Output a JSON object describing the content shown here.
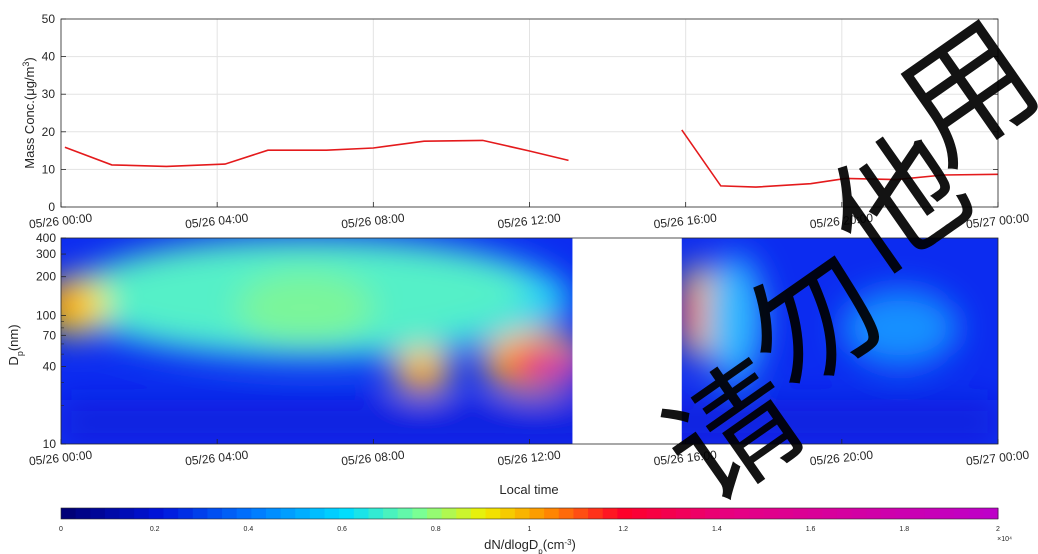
{
  "chart_data": [
    {
      "type": "line",
      "ylabel": "Mass Conc.(μg/m3)",
      "ylim": [
        0,
        50
      ],
      "yticks": [
        "0",
        "10",
        "20",
        "30",
        "40",
        "50"
      ],
      "xticks": [
        "05/26 00:00",
        "05/26 04:00",
        "05/26 08:00",
        "05/26 12:00",
        "05/26 16:00",
        "05/26 20:00",
        "05/27 00:00"
      ],
      "grid": true,
      "color": "#e41a1c",
      "segments": [
        [
          [
            0.1,
            15.9
          ],
          [
            1.3,
            11.2
          ],
          [
            2.7,
            10.8
          ],
          [
            4.2,
            11.4
          ],
          [
            5.3,
            15.1
          ],
          [
            6.8,
            15.1
          ],
          [
            8.0,
            15.7
          ],
          [
            9.3,
            17.5
          ],
          [
            10.8,
            17.7
          ],
          [
            12.0,
            14.9
          ],
          [
            13.0,
            12.4
          ]
        ],
        [
          [
            15.9,
            20.5
          ],
          [
            16.9,
            5.6
          ],
          [
            17.8,
            5.3
          ],
          [
            19.2,
            6.2
          ],
          [
            20.1,
            7.6
          ],
          [
            21.4,
            7.3
          ],
          [
            22.6,
            8.5
          ],
          [
            24.0,
            8.7
          ]
        ]
      ]
    },
    {
      "type": "heatmap",
      "ylabel": "Dp(nm)",
      "xlabel": "Local time",
      "yticks": [
        "10",
        "40",
        "70",
        "100",
        "200",
        "300",
        "400"
      ],
      "xticks": [
        "05/26 00:00",
        "05/26 04:00",
        "05/26 08:00",
        "05/26 12:00",
        "05/26 16:00",
        "05/26 20:00",
        "05/27 00:00"
      ],
      "ylim": [
        10,
        400
      ],
      "yscale": "log",
      "gap": [
        13.1,
        15.9
      ],
      "colorbar": {
        "label": "dN/dlogDp(cm-3)",
        "ticks": [
          "0",
          "0.2",
          "0.4",
          "0.6",
          "0.8",
          "1",
          "1.2",
          "1.4",
          "1.6",
          "1.8",
          "2"
        ],
        "exponent": "×10⁴",
        "range": [
          0,
          2
        ]
      }
    }
  ],
  "watermark": "请勿他用"
}
